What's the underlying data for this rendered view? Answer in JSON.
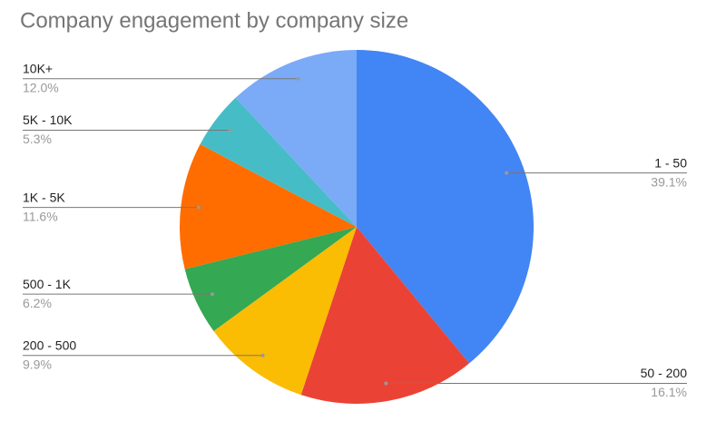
{
  "chart_data": {
    "type": "pie",
    "title": "Company engagement by company size",
    "categories": [
      "1 - 50",
      "50 - 200",
      "200 - 500",
      "500 - 1K",
      "1K - 5K",
      "5K - 10K",
      "10K+"
    ],
    "values": [
      39.1,
      16.1,
      9.9,
      6.2,
      11.6,
      5.3,
      12.0
    ],
    "value_labels": [
      "39.1%",
      "16.1%",
      "9.9%",
      "6.2%",
      "11.6%",
      "5.3%",
      "12.0%"
    ],
    "colors": [
      "#4285f4",
      "#ea4335",
      "#fbbc04",
      "#34a853",
      "#ff6d01",
      "#46bdc6",
      "#7baaf7"
    ]
  }
}
